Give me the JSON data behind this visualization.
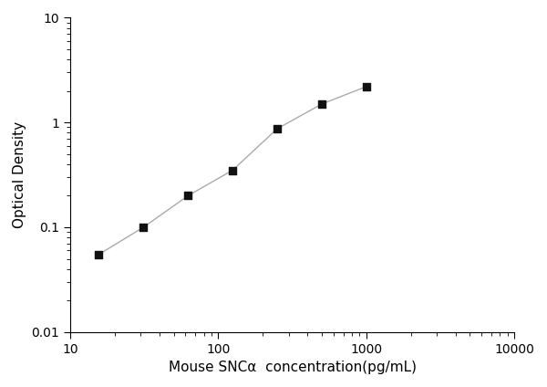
{
  "x": [
    15.6,
    31.25,
    62.5,
    125,
    250,
    500,
    1000
  ],
  "y": [
    0.055,
    0.1,
    0.2,
    0.35,
    0.87,
    1.5,
    2.2
  ],
  "xlabel": "Mouse SNCα  concentration(pg/mL)",
  "ylabel": "Optical Density",
  "xlim": [
    10,
    10000
  ],
  "ylim": [
    0.01,
    10
  ],
  "line_color": "#aaaaaa",
  "marker_color": "#111111",
  "marker": "s",
  "marker_size": 6,
  "line_width": 1.0,
  "line_style": "-",
  "background_color": "#ffffff",
  "xlabel_fontsize": 11,
  "ylabel_fontsize": 11,
  "tick_fontsize": 10
}
